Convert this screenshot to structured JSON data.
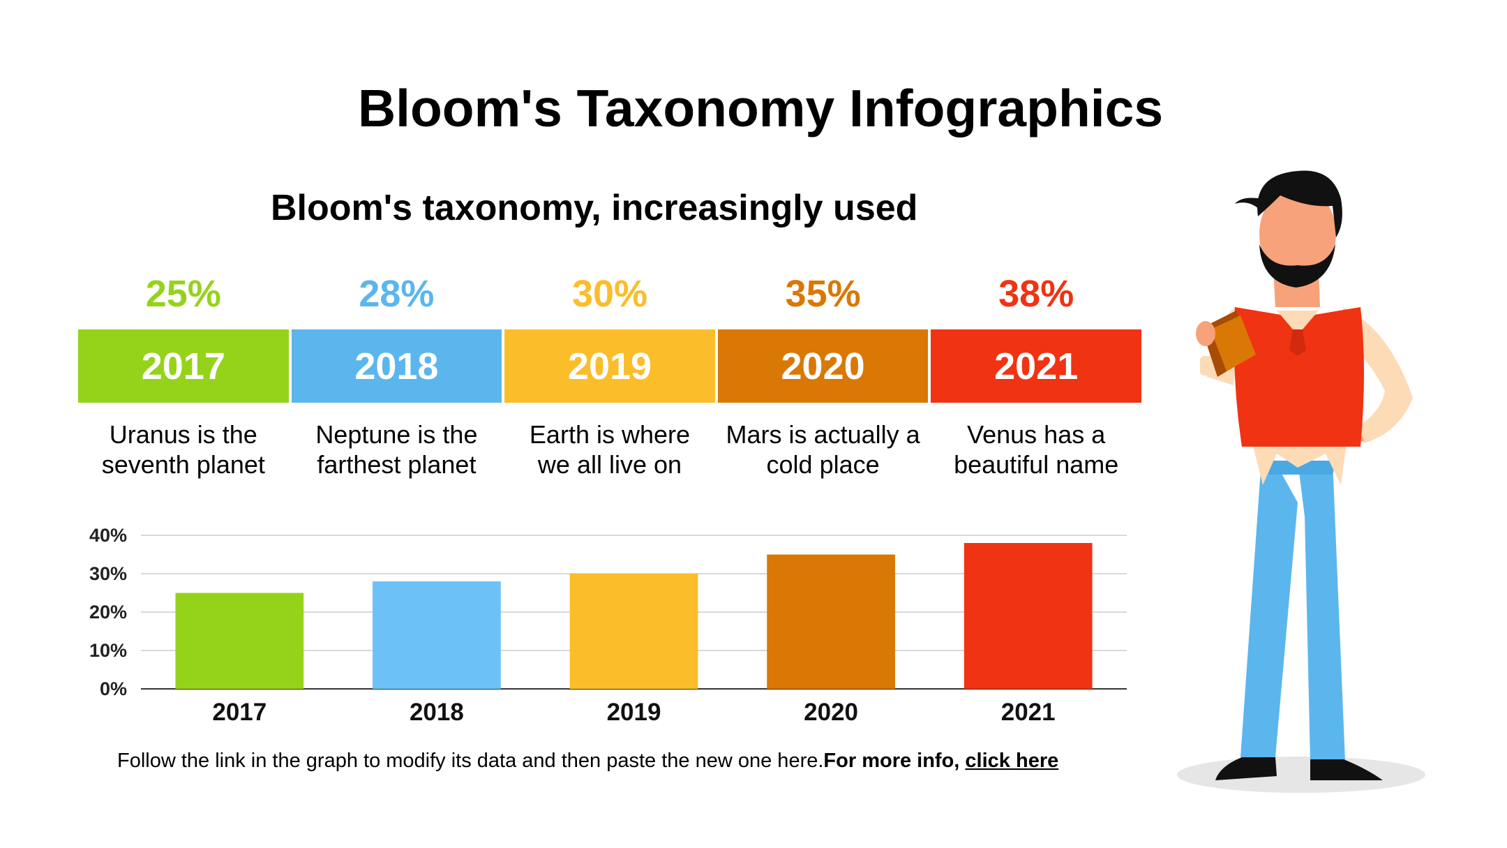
{
  "title": "Bloom's Taxonomy Infographics",
  "subtitle": "Bloom's taxonomy, increasingly used",
  "columns": [
    {
      "pct": "25%",
      "year": "2017",
      "desc": "Uranus is the seventh planet",
      "color": "#95d31a"
    },
    {
      "pct": "28%",
      "year": "2018",
      "desc": "Neptune is the farthest planet",
      "color": "#5bb6ee"
    },
    {
      "pct": "30%",
      "year": "2019",
      "desc": "Earth is where we all live on",
      "color": "#fbbd2a"
    },
    {
      "pct": "35%",
      "year": "2020",
      "desc": "Mars is actually a cold place",
      "color": "#d97805"
    },
    {
      "pct": "38%",
      "year": "2021",
      "desc": "Venus has a beautiful name",
      "color": "#f03312"
    }
  ],
  "chart_data": {
    "type": "bar",
    "categories": [
      "2017",
      "2018",
      "2019",
      "2020",
      "2021"
    ],
    "values": [
      25,
      28,
      30,
      35,
      38
    ],
    "colors": [
      "#95d31a",
      "#6cc2f6",
      "#fbbd2a",
      "#d97805",
      "#f03312"
    ],
    "title": "",
    "xlabel": "",
    "ylabel": "",
    "ylim": [
      0,
      40
    ],
    "yticks": [
      "0%",
      "10%",
      "20%",
      "30%",
      "40%"
    ],
    "grid": true,
    "legend": "none"
  },
  "footer": {
    "text": "Follow the link in the graph to modify its data and then paste the new one here.",
    "more": "For more info, ",
    "link": "click here"
  },
  "illustration": {
    "icon": "man-reading-book-illustration"
  }
}
